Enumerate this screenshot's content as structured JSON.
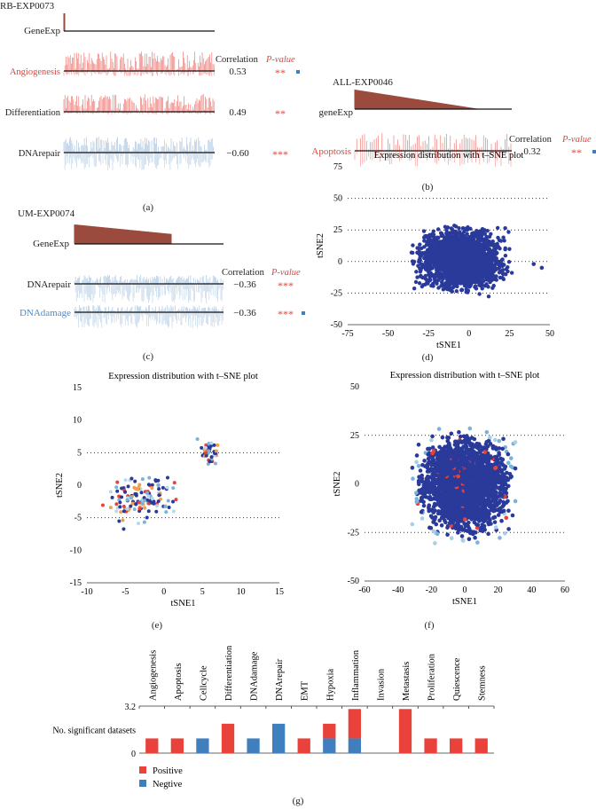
{
  "colors": {
    "positive": "#e8423a",
    "negative": "#3f7fbd",
    "text_red": "#e8423a",
    "text_blue": "#4a8ccc",
    "scatter_main": "#2a3a9a",
    "gene_exp": "#9b4a3e"
  },
  "panel_a": {
    "label": "(a)",
    "dataset": "RB-EXP0073",
    "gene_row": "GeneExp",
    "corr_header": "Correlation",
    "p_header": "P-value",
    "rows": [
      {
        "name": "Angiogenesis",
        "corr": "0.53",
        "sig": "**",
        "color": "red",
        "marker": true
      },
      {
        "name": "Differentiation",
        "corr": "0.49",
        "sig": "**",
        "color": "black",
        "marker": false
      },
      {
        "name": "DNArepair",
        "corr": "−0.60",
        "sig": "***",
        "color": "black",
        "marker": false
      }
    ]
  },
  "panel_b": {
    "label": "(b)",
    "dataset": "ALL-EXP0046",
    "gene_row": "geneExp",
    "corr_header": "Correlation",
    "p_header": "P-value",
    "rows": [
      {
        "name": "Apoptosis",
        "corr": "0.32",
        "sig": "**",
        "color": "red",
        "marker": true
      }
    ]
  },
  "panel_c": {
    "label": "(c)",
    "dataset": "UM-EXP0074",
    "gene_row": "GeneExp",
    "corr_header": "Correlation",
    "p_header": "P-value",
    "rows": [
      {
        "name": "DNArepair",
        "corr": "−0.36",
        "sig": "***",
        "color": "black",
        "marker": false
      },
      {
        "name": "DNAdamage",
        "corr": "−0.36",
        "sig": "***",
        "color": "blue",
        "marker": true
      }
    ]
  },
  "chart_data": [
    {
      "panel": "(d)",
      "type": "scatter",
      "title": "Expression distribution with t–SNE plot",
      "xlabel": "tSNE1",
      "ylabel": "tSNE2",
      "xlim": [
        -75,
        50
      ],
      "ylim": [
        -50,
        75
      ],
      "xticks": [
        "-75",
        "-50",
        "-25",
        "0",
        "25",
        "50"
      ],
      "yticks": [
        "75",
        "50",
        "25",
        "0",
        "-25",
        "-50"
      ],
      "grid": "dotted horizontal at 50, 25, 0, -25",
      "description_points": "dense blob roughly x -55..45, y -45..48"
    },
    {
      "panel": "(e)",
      "type": "scatter",
      "title": "Expression distribution with t–SNE plot",
      "xlabel": "tSNE1",
      "ylabel": "tSNE2",
      "xlim": [
        -10,
        15
      ],
      "ylim": [
        -15,
        15
      ],
      "xticks": [
        "-10",
        "-5",
        "0",
        "5",
        "10",
        "15"
      ],
      "yticks": [
        "15",
        "10",
        "5",
        "0",
        "-5",
        "-10",
        "-15"
      ],
      "grid": "dotted horizontal at 5, -5"
    },
    {
      "panel": "(f)",
      "type": "scatter",
      "title": "Expression distribution with t–SNE plot",
      "xlabel": "tSNE1",
      "ylabel": "tSNE2",
      "xlim": [
        -60,
        60
      ],
      "ylim": [
        -50,
        50
      ],
      "xticks": [
        "-60",
        "-40",
        "-20",
        "0",
        "20",
        "40",
        "60"
      ],
      "yticks": [
        "50",
        "25",
        "0",
        "-25",
        "-50"
      ],
      "grid": "dotted horizontal at 25, -25"
    },
    {
      "panel": "(g)",
      "type": "bar",
      "stacked": true,
      "ylabel": "No. significant datasets",
      "ylim": [
        0,
        3.2
      ],
      "yticks": [
        "3.2",
        "0"
      ],
      "categories": [
        "Angiogenesis",
        "Apoptosis",
        "Cellcycle",
        "Differentiation",
        "DNAdamage",
        "DNArepair",
        "EMT",
        "Hypoxia",
        "Inflammation",
        "Invasion",
        "Metastasis",
        "Proliferation",
        "Quiescence",
        "Stemness"
      ],
      "series": [
        {
          "name": "Negtive",
          "values": [
            0,
            0,
            1,
            0,
            1,
            2,
            0,
            1,
            1,
            0,
            0,
            0,
            0,
            0
          ]
        },
        {
          "name": "Positive",
          "values": [
            1,
            1,
            0,
            2,
            0,
            0,
            1,
            1,
            2,
            0,
            3,
            1,
            1,
            1
          ]
        }
      ],
      "legend": "bottom-left"
    }
  ],
  "panel_labels": {
    "d": "(d)",
    "e": "(e)",
    "f": "(f)",
    "g": "(g)"
  }
}
